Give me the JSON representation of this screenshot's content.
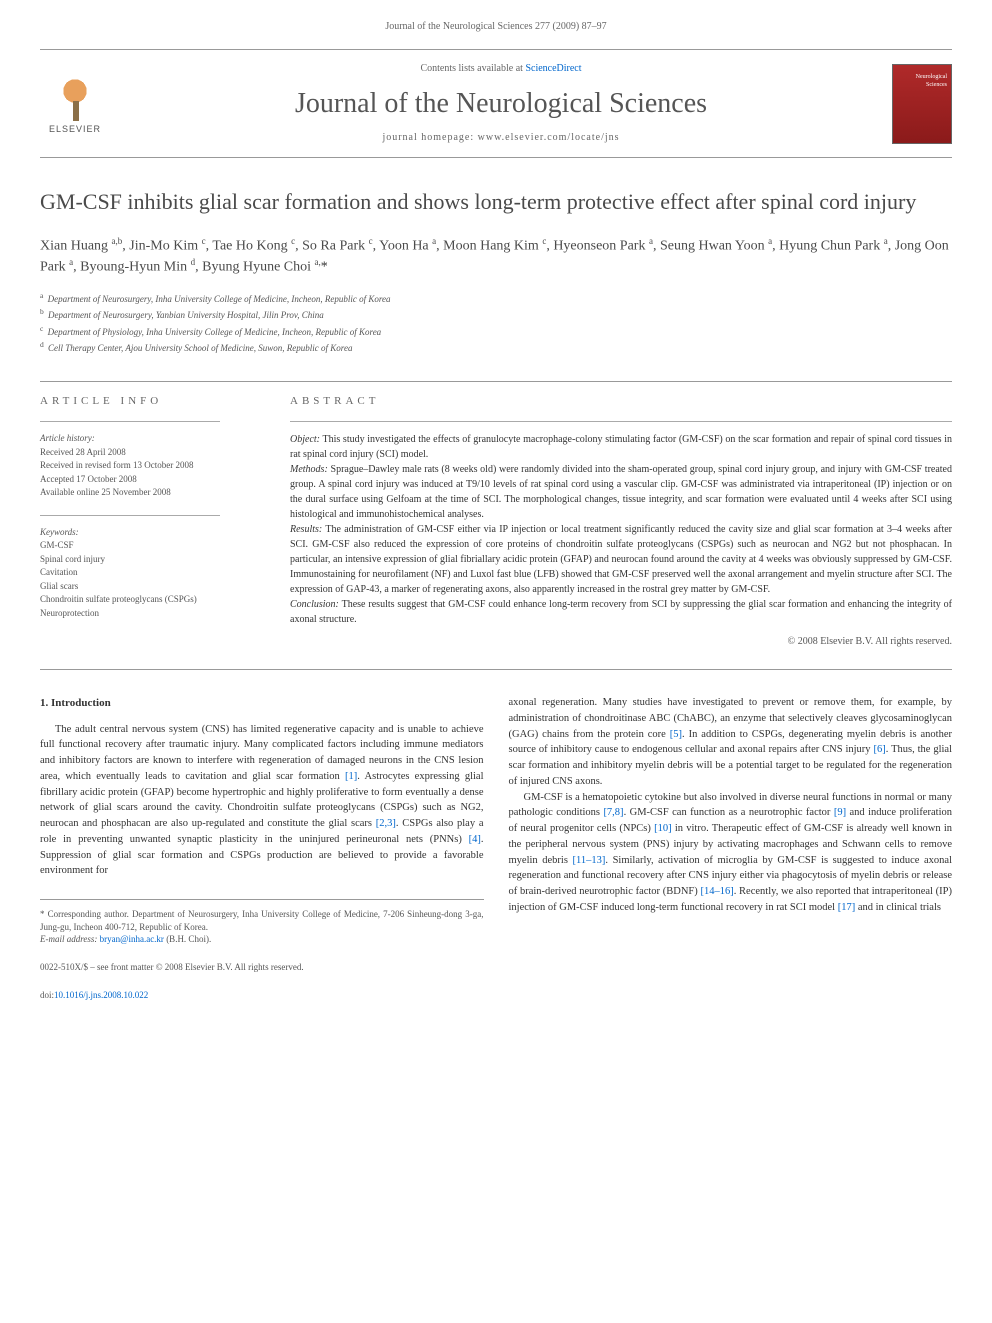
{
  "page_header": "Journal of the Neurological Sciences 277 (2009) 87–97",
  "banner": {
    "contents_prefix": "Contents lists available at ",
    "contents_link": "ScienceDirect",
    "journal_name": "Journal of the Neurological Sciences",
    "homepage_prefix": "journal homepage: ",
    "homepage_url": "www.elsevier.com/locate/jns",
    "publisher": "ELSEVIER",
    "cover_text": "Neurological Sciences"
  },
  "article": {
    "title": "GM-CSF inhibits glial scar formation and shows long-term protective effect after spinal cord injury",
    "authors_html": "Xian Huang <sup>a,b</sup>, Jin-Mo Kim <sup>c</sup>, Tae Ho Kong <sup>c</sup>, So Ra Park <sup>c</sup>, Yoon Ha <sup>a</sup>, Moon Hang Kim <sup>c</sup>, Hyeonseon Park <sup>a</sup>, Seung Hwan Yoon <sup>a</sup>, Hyung Chun Park <sup>a</sup>, Jong Oon Park <sup>a</sup>, Byoung-Hyun Min <sup>d</sup>, Byung Hyune Choi <sup>a,</sup><span class='star'>*</span>",
    "affiliations": [
      {
        "sup": "a",
        "text": "Department of Neurosurgery, Inha University College of Medicine, Incheon, Republic of Korea"
      },
      {
        "sup": "b",
        "text": "Department of Neurosurgery, Yanbian University Hospital, Jilin Prov, China"
      },
      {
        "sup": "c",
        "text": "Department of Physiology, Inha University College of Medicine, Incheon, Republic of Korea"
      },
      {
        "sup": "d",
        "text": "Cell Therapy Center, Ajou University School of Medicine, Suwon, Republic of Korea"
      }
    ]
  },
  "article_info": {
    "label": "ARTICLE INFO",
    "history_label": "Article history:",
    "history": [
      "Received 28 April 2008",
      "Received in revised form 13 October 2008",
      "Accepted 17 October 2008",
      "Available online 25 November 2008"
    ],
    "keywords_label": "Keywords:",
    "keywords": [
      "GM-CSF",
      "Spinal cord injury",
      "Cavitation",
      "Glial scars",
      "Chondroitin sulfate proteoglycans (CSPGs)",
      "Neuroprotection"
    ]
  },
  "abstract": {
    "label": "ABSTRACT",
    "object_label": "Object:",
    "object": " This study investigated the effects of granulocyte macrophage-colony stimulating factor (GM-CSF) on the scar formation and repair of spinal cord tissues in rat spinal cord injury (SCI) model.",
    "methods_label": "Methods:",
    "methods": " Sprague–Dawley male rats (8 weeks old) were randomly divided into the sham-operated group, spinal cord injury group, and injury with GM-CSF treated group. A spinal cord injury was induced at T9/10 levels of rat spinal cord using a vascular clip. GM-CSF was administrated via intraperitoneal (IP) injection or on the dural surface using Gelfoam at the time of SCI. The morphological changes, tissue integrity, and scar formation were evaluated until 4 weeks after SCI using histological and immunohistochemical analyses.",
    "results_label": "Results:",
    "results": " The administration of GM-CSF either via IP injection or local treatment significantly reduced the cavity size and glial scar formation at 3–4 weeks after SCI. GM-CSF also reduced the expression of core proteins of chondroitin sulfate proteoglycans (CSPGs) such as neurocan and NG2 but not phosphacan. In particular, an intensive expression of glial fibriallary acidic protein (GFAP) and neurocan found around the cavity at 4 weeks was obviously suppressed by GM-CSF. Immunostaining for neurofilament (NF) and Luxol fast blue (LFB) showed that GM-CSF preserved well the axonal arrangement and myelin structure after SCI. The expression of GAP-43, a marker of regenerating axons, also apparently increased in the rostral grey matter by GM-CSF.",
    "conclusion_label": "Conclusion:",
    "conclusion": " These results suggest that GM-CSF could enhance long-term recovery from SCI by suppressing the glial scar formation and enhancing the integrity of axonal structure.",
    "copyright": "© 2008 Elsevier B.V. All rights reserved."
  },
  "body": {
    "section_heading": "1. Introduction",
    "col1_p1_a": "The adult central nervous system (CNS) has limited regenerative capacity and is unable to achieve full functional recovery after traumatic injury. Many complicated factors including immune mediators and inhibitory factors are known to interfere with regeneration of damaged neurons in the CNS lesion area, which eventually leads to cavitation and glial scar formation ",
    "ref1": "[1]",
    "col1_p1_b": ". Astrocytes expressing glial fibrillary acidic protein (GFAP) become hypertrophic and highly proliferative to form eventually a dense network of glial scars around the cavity. Chondroitin sulfate proteoglycans (CSPGs) such as NG2, neurocan and phosphacan are also up-regulated and constitute the glial scars ",
    "ref23": "[2,3]",
    "col1_p1_c": ". CSPGs also play a role in preventing unwanted synaptic plasticity in the uninjured perineuronal nets (PNNs) ",
    "ref4": "[4]",
    "col1_p1_d": ". Suppression of glial scar formation and CSPGs production are believed to provide a favorable environment for",
    "col2_p1_a": "axonal regeneration. Many studies have investigated to prevent or remove them, for example, by administration of chondroitinase ABC (ChABC), an enzyme that selectively cleaves glycosaminoglycan (GAG) chains from the protein core ",
    "ref5": "[5]",
    "col2_p1_b": ". In addition to CSPGs, degenerating myelin debris is another source of inhibitory cause to endogenous cellular and axonal repairs after CNS injury ",
    "ref6": "[6]",
    "col2_p1_c": ". Thus, the glial scar formation and inhibitory myelin debris will be a potential target to be regulated for the regeneration of injured CNS axons.",
    "col2_p2_a": "GM-CSF is a hematopoietic cytokine but also involved in diverse neural functions in normal or many pathologic conditions ",
    "ref78": "[7,8]",
    "col2_p2_b": ". GM-CSF can function as a neurotrophic factor ",
    "ref9": "[9]",
    "col2_p2_c": " and induce proliferation of neural progenitor cells (NPCs) ",
    "ref10": "[10]",
    "col2_p2_d": " in vitro. Therapeutic effect of GM-CSF is already well known in the peripheral nervous system (PNS) injury by activating macrophages and Schwann cells to remove myelin debris ",
    "ref1113": "[11–13]",
    "col2_p2_e": ". Similarly, activation of microglia by GM-CSF is suggested to induce axonal regeneration and functional recovery after CNS injury either via phagocytosis of myelin debris or release of brain-derived neurotrophic factor (BDNF) ",
    "ref1416": "[14–16]",
    "col2_p2_f": ". Recently, we also reported that intraperitoneal (IP) injection of GM-CSF induced long-term functional recovery in rat SCI model ",
    "ref17": "[17]",
    "col2_p2_g": " and in clinical trials"
  },
  "footnote": {
    "corr_label": "* Corresponding author. ",
    "corr_text": "Department of Neurosurgery, Inha University College of Medicine, 7-206 Sinheung-dong 3-ga, Jung-gu, Incheon 400-712, Republic of Korea.",
    "email_label": "E-mail address: ",
    "email": "bryan@inha.ac.kr",
    "email_suffix": " (B.H. Choi)."
  },
  "footer": {
    "issn": "0022-510X/$ – see front matter © 2008 Elsevier B.V. All rights reserved.",
    "doi_label": "doi:",
    "doi": "10.1016/j.jns.2008.10.022"
  }
}
